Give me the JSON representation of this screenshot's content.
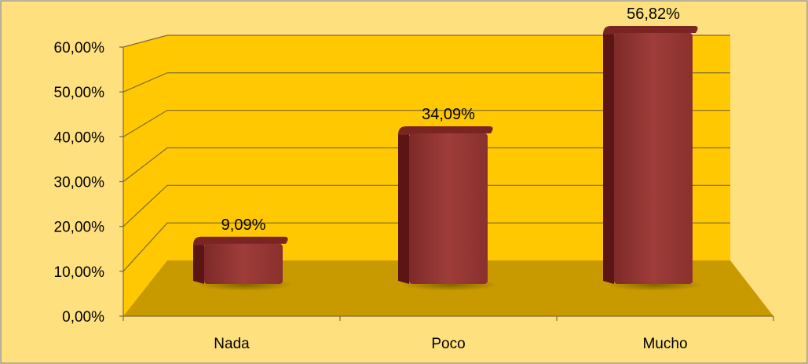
{
  "chart_data": {
    "type": "bar",
    "categories": [
      "Nada",
      "Poco",
      "Mucho"
    ],
    "values": [
      9.09,
      34.09,
      56.82
    ],
    "value_labels": [
      "9,09%",
      "34,09%",
      "56,82%"
    ],
    "y_ticks": [
      0,
      10,
      20,
      30,
      40,
      50,
      60
    ],
    "y_tick_labels": [
      "0,00%",
      "10,00%",
      "20,00%",
      "30,00%",
      "40,00%",
      "50,00%",
      "60,00%"
    ],
    "ylim": [
      0,
      60
    ],
    "title": "",
    "xlabel": "",
    "ylabel": "",
    "grid": true,
    "legend": false
  },
  "colors": {
    "background": "#FFE07F",
    "border": "#A09A80",
    "back_wall": "#FFC800",
    "side_wall": "#FFC800",
    "floor": "#C99A00",
    "gridline": "#7F6A33",
    "bar_front": "#953735",
    "bar_top": "#7A2523",
    "bar_side": "#5A1514"
  }
}
